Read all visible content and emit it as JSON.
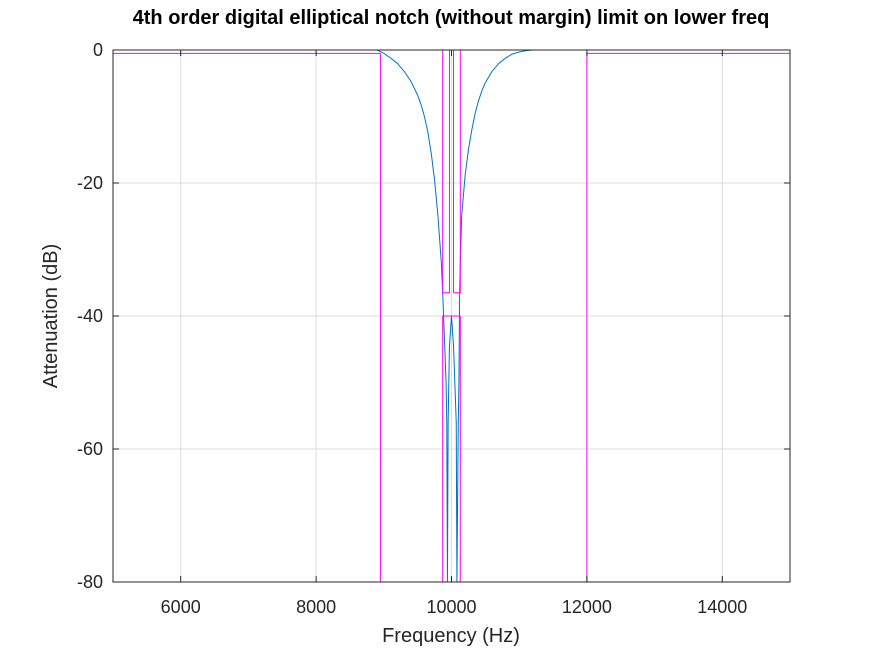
{
  "chart_data": {
    "type": "line",
    "title": "4th order digital elliptical notch (without margin) limit on lower freq",
    "xlabel": "Frequency (Hz)",
    "ylabel": "Attenuation (dB)",
    "xlim": [
      5000,
      15000
    ],
    "ylim": [
      -80,
      0
    ],
    "xticks": [
      6000,
      8000,
      10000,
      12000,
      14000
    ],
    "yticks": [
      0,
      -20,
      -40,
      -60,
      -80
    ],
    "xtick_labels": [
      "6000",
      "8000",
      "10000",
      "12000",
      "14000"
    ],
    "ytick_labels": [
      "0",
      "-20",
      "-40",
      "-60",
      "-80"
    ],
    "grid": true,
    "legend": "none",
    "colors": {
      "response": "#0072bd",
      "limit": "#ff00ff",
      "grid": "#dcdcdc",
      "axes": "#262626"
    },
    "series": [
      {
        "color": "#0072bd",
        "x": [
          5000,
          8900,
          9000,
          9100,
          9200,
          9300,
          9400,
          9500,
          9550,
          9600,
          9650,
          9700,
          9750,
          9800,
          9850,
          9870,
          9920,
          9930,
          9940,
          9950,
          9970,
          10000,
          10030,
          10070,
          10080,
          10100,
          10110,
          10120,
          10130,
          10150,
          10200,
          10250,
          10300,
          10350,
          10400,
          10450,
          10500,
          10600,
          10700,
          10800,
          10900,
          11000,
          11100,
          11200,
          11300,
          12000,
          15000
        ],
        "y": [
          0,
          0,
          -0.5,
          -1.2,
          -2.0,
          -3.2,
          -4.7,
          -6.8,
          -8.2,
          -10.0,
          -12.3,
          -15.5,
          -19.5,
          -25.0,
          -32.0,
          -36.5,
          -50,
          -56,
          -80,
          -56,
          -44.5,
          -40,
          -44.5,
          -56,
          -80,
          -56,
          -50,
          -36.5,
          -32.0,
          -25.0,
          -19.0,
          -15.0,
          -12.0,
          -9.5,
          -7.6,
          -6.1,
          -4.9,
          -3.2,
          -2.0,
          -1.2,
          -0.6,
          -0.3,
          -0.1,
          0,
          0,
          0,
          0
        ]
      },
      {
        "color": "#ff00ff",
        "x": [
          5000,
          8950,
          8950,
          9870,
          9870,
          10130,
          10130,
          12000,
          12000,
          15000
        ],
        "y": [
          -0.5,
          -0.5,
          -80,
          -80,
          -40,
          -40,
          -80,
          -80,
          -0.5,
          -0.5
        ]
      },
      {
        "color": "#ff00ff",
        "x": [
          5000,
          9870,
          9870,
          9970,
          9970,
          10030,
          10030,
          10130,
          10130,
          15000
        ],
        "y": [
          0,
          0,
          -36.5,
          -36.5,
          0,
          0,
          -36.5,
          -36.5,
          0,
          0
        ]
      }
    ]
  }
}
